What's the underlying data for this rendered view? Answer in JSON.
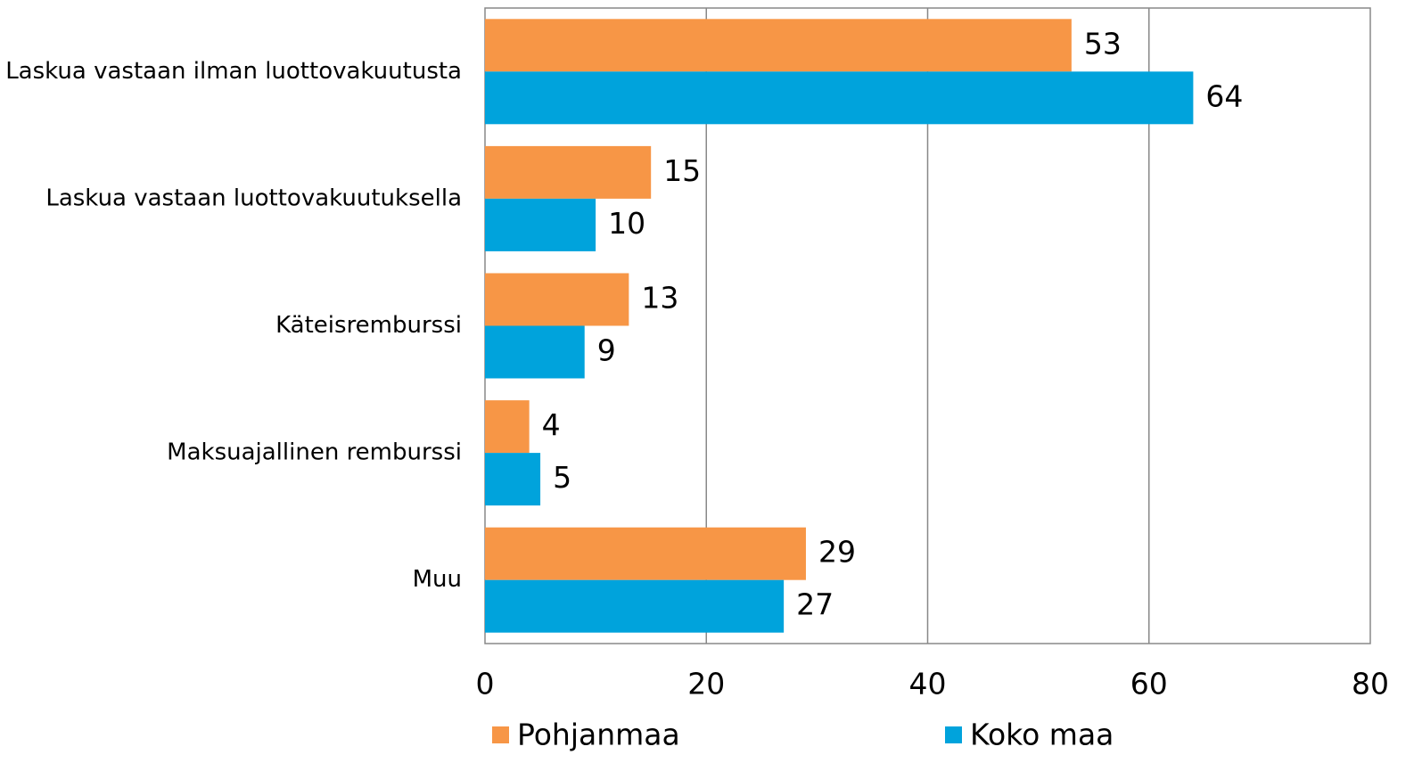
{
  "chart_data": {
    "type": "hbar",
    "categories": [
      "Laskua vastaan ilman luottovakuutusta",
      "Laskua vastaan luottovakuutuksella",
      "Käteisremburssi",
      "Maksuajallinen remburssi",
      "Muu"
    ],
    "series": [
      {
        "name": "Pohjanmaa",
        "color": "#f79646",
        "values": [
          53,
          15,
          13,
          4,
          29
        ]
      },
      {
        "name": "Koko maa",
        "color": "#00a3dc",
        "values": [
          64,
          10,
          9,
          5,
          27
        ]
      }
    ],
    "xlim": [
      0,
      80
    ],
    "xticks": [
      0,
      20,
      40,
      60,
      80
    ],
    "grid": true,
    "legend": "bottom"
  }
}
